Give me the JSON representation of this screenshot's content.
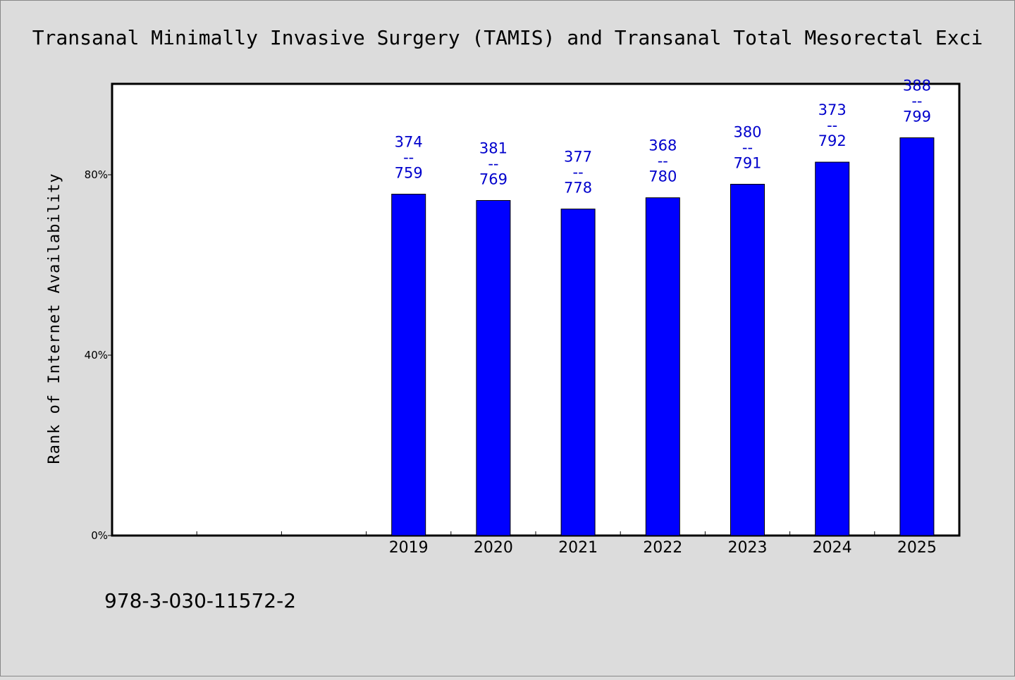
{
  "chart_data": {
    "type": "bar",
    "title": "Transanal Minimally Invasive Surgery (TAMIS) and Transanal Total Mesorectal Exci",
    "ylabel": "Rank of Internet Availability",
    "xlabel": "",
    "ylim": [
      0,
      100
    ],
    "yticks": [
      0,
      40,
      80
    ],
    "ytick_labels": [
      "0%",
      "40%",
      "80%"
    ],
    "grid": false,
    "categories": [
      "",
      "",
      "",
      "2019",
      "2020",
      "2021",
      "2022",
      "2023",
      "2024",
      "2025"
    ],
    "values": [
      null,
      null,
      null,
      75.7,
      74.3,
      72.4,
      74.9,
      77.9,
      82.8,
      88.2
    ],
    "data_labels": [
      null,
      null,
      null,
      {
        "top": "374",
        "sep": "--",
        "bottom": "759"
      },
      {
        "top": "381",
        "sep": "--",
        "bottom": "769"
      },
      {
        "top": "377",
        "sep": "--",
        "bottom": "778"
      },
      {
        "top": "368",
        "sep": "--",
        "bottom": "780"
      },
      {
        "top": "380",
        "sep": "--",
        "bottom": "791"
      },
      {
        "top": "373",
        "sep": "--",
        "bottom": "792"
      },
      {
        "top": "388",
        "sep": "--",
        "bottom": "799"
      }
    ],
    "bar_color": "#0000ff",
    "label_color": "#0000cc"
  },
  "footer": {
    "text": "978-3-030-11572-2"
  }
}
